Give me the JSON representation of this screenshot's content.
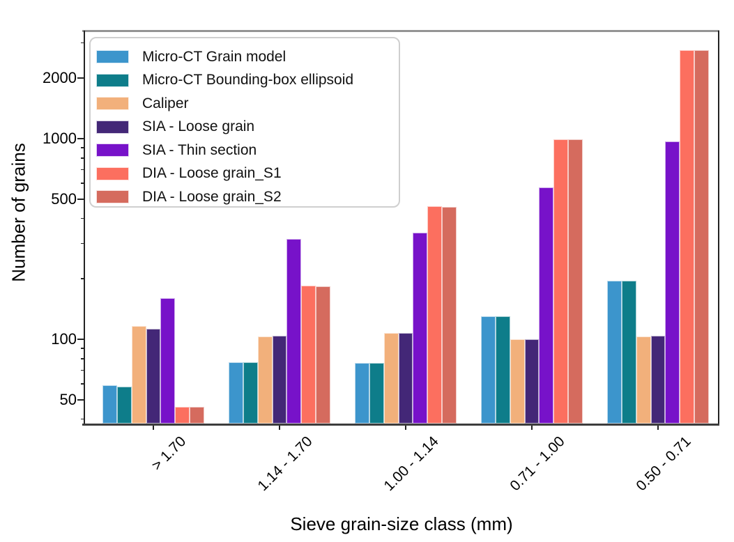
{
  "chart_data": {
    "type": "bar",
    "subtype": "grouped",
    "y_scale": "log",
    "title": "",
    "xlabel": "Sieve grain-size class (mm)",
    "ylabel": "Number of grains",
    "categories": [
      "> 1.70",
      "1.14 - 1.70",
      "1.00 - 1.14",
      "0.71 - 1.00",
      "0.50 - 0.71"
    ],
    "series": [
      {
        "name": "Micro-CT Grain model",
        "color": "#3C95CC",
        "values": [
          59,
          77,
          76,
          130,
          196
        ]
      },
      {
        "name": "Micro-CT Bounding-box ellipsoid",
        "color": "#0E7D8A",
        "values": [
          58,
          77,
          76,
          130,
          196
        ]
      },
      {
        "name": "Caliper",
        "color": "#F2B07B",
        "values": [
          116,
          103,
          107,
          100,
          103
        ]
      },
      {
        "name": "SIA - Loose grain",
        "color": "#432777",
        "values": [
          113,
          104,
          107,
          100,
          104
        ]
      },
      {
        "name": "SIA - Thin section",
        "color": "#7712C9",
        "values": [
          160,
          315,
          340,
          570,
          970
        ]
      },
      {
        "name": "DIA - Loose grain_S1",
        "color": "#FC6F5F",
        "values": [
          46,
          185,
          460,
          990,
          2750
        ]
      },
      {
        "name": "DIA - Loose grain_S2",
        "color": "#D56B5E",
        "values": [
          46,
          184,
          458,
          990,
          2750
        ]
      }
    ],
    "y_ticks": [
      50,
      100,
      500,
      1000,
      2000
    ],
    "y_tick_labels": [
      "50",
      "100",
      "500",
      "1000",
      "2000"
    ],
    "ylim": [
      38,
      3450
    ],
    "grid": false,
    "legend_position": "upper left"
  }
}
